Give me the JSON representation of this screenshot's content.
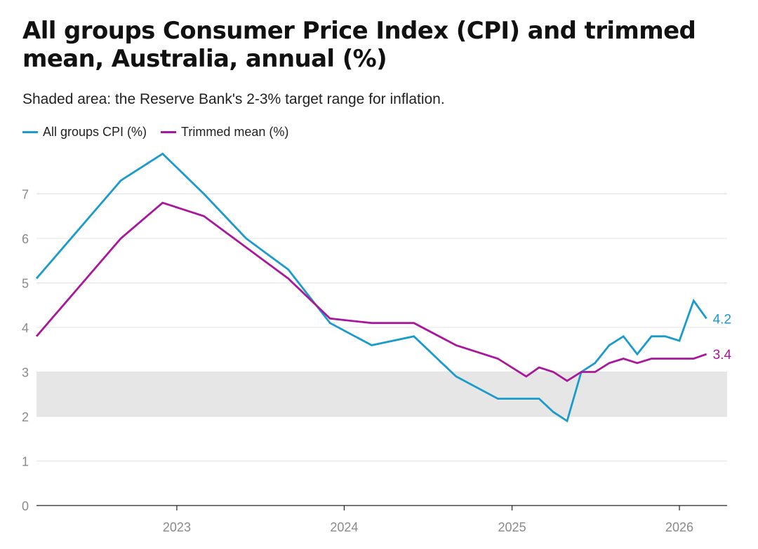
{
  "header": {
    "title": "All groups Consumer Price Index (CPI) and trimmed mean, Australia, annual (%)",
    "subtitle": "Shaded area: the Reserve Bank's 2-3% target range for inflation."
  },
  "chart_data": {
    "type": "line",
    "title": "All groups Consumer Price Index (CPI) and trimmed mean, Australia, annual (%)",
    "subtitle": "Shaded area: the Reserve Bank's 2-3% target range for inflation.",
    "xlabel": "",
    "ylabel": "",
    "xlim": [
      "2022-03-01",
      "2026-04-15"
    ],
    "ylim": [
      0,
      8
    ],
    "y_ticks": [
      "0",
      "1",
      "2",
      "3",
      "4",
      "5",
      "6",
      "7"
    ],
    "x_ticks": [
      {
        "label": "2023",
        "date": "2023-01-01"
      },
      {
        "label": "2024",
        "date": "2024-01-01"
      },
      {
        "label": "2025",
        "date": "2025-01-01"
      },
      {
        "label": "2026",
        "date": "2026-01-01"
      }
    ],
    "grid": true,
    "legend": "top-left",
    "target_band": {
      "low": 2,
      "high": 3,
      "color": "#e6e6e6"
    },
    "series": [
      {
        "name": "All groups CPI (%)",
        "color": "#1a9bcc",
        "end_label": "4.2",
        "points": [
          {
            "x": "2022-03-01",
            "y": 5.1
          },
          {
            "x": "2022-09-01",
            "y": 7.3
          },
          {
            "x": "2022-12-01",
            "y": 7.9
          },
          {
            "x": "2023-03-01",
            "y": 7.0
          },
          {
            "x": "2023-06-01",
            "y": 6.0
          },
          {
            "x": "2023-09-01",
            "y": 5.3
          },
          {
            "x": "2023-12-01",
            "y": 4.1
          },
          {
            "x": "2024-03-01",
            "y": 3.6
          },
          {
            "x": "2024-06-01",
            "y": 3.8
          },
          {
            "x": "2024-09-01",
            "y": 2.9
          },
          {
            "x": "2024-12-01",
            "y": 2.4
          },
          {
            "x": "2025-01-01",
            "y": 2.4
          },
          {
            "x": "2025-02-01",
            "y": 2.4
          },
          {
            "x": "2025-03-01",
            "y": 2.4
          },
          {
            "x": "2025-04-01",
            "y": 2.1
          },
          {
            "x": "2025-05-01",
            "y": 1.9
          },
          {
            "x": "2025-06-01",
            "y": 3.0
          },
          {
            "x": "2025-07-01",
            "y": 3.2
          },
          {
            "x": "2025-08-01",
            "y": 3.6
          },
          {
            "x": "2025-09-01",
            "y": 3.8
          },
          {
            "x": "2025-10-01",
            "y": 3.4
          },
          {
            "x": "2025-11-01",
            "y": 3.8
          },
          {
            "x": "2025-12-01",
            "y": 3.8
          },
          {
            "x": "2026-01-01",
            "y": 3.7
          },
          {
            "x": "2026-02-01",
            "y": 4.6
          },
          {
            "x": "2026-03-01",
            "y": 4.2
          }
        ]
      },
      {
        "name": "Trimmed mean (%)",
        "color": "#a8189a",
        "end_label": "3.4",
        "points": [
          {
            "x": "2022-03-01",
            "y": 3.8
          },
          {
            "x": "2022-09-01",
            "y": 6.0
          },
          {
            "x": "2022-12-01",
            "y": 6.8
          },
          {
            "x": "2023-03-01",
            "y": 6.5
          },
          {
            "x": "2023-06-01",
            "y": 5.8
          },
          {
            "x": "2023-09-01",
            "y": 5.1
          },
          {
            "x": "2023-12-01",
            "y": 4.2
          },
          {
            "x": "2024-03-01",
            "y": 4.1
          },
          {
            "x": "2024-06-01",
            "y": 4.1
          },
          {
            "x": "2024-09-01",
            "y": 3.6
          },
          {
            "x": "2024-12-01",
            "y": 3.3
          },
          {
            "x": "2025-02-01",
            "y": 2.9
          },
          {
            "x": "2025-03-01",
            "y": 3.1
          },
          {
            "x": "2025-04-01",
            "y": 3.0
          },
          {
            "x": "2025-05-01",
            "y": 2.8
          },
          {
            "x": "2025-06-01",
            "y": 3.0
          },
          {
            "x": "2025-07-01",
            "y": 3.0
          },
          {
            "x": "2025-08-01",
            "y": 3.2
          },
          {
            "x": "2025-09-01",
            "y": 3.3
          },
          {
            "x": "2025-10-01",
            "y": 3.2
          },
          {
            "x": "2025-11-01",
            "y": 3.3
          },
          {
            "x": "2026-01-01",
            "y": 3.3
          },
          {
            "x": "2026-02-01",
            "y": 3.3
          },
          {
            "x": "2026-03-01",
            "y": 3.4
          }
        ]
      }
    ]
  }
}
